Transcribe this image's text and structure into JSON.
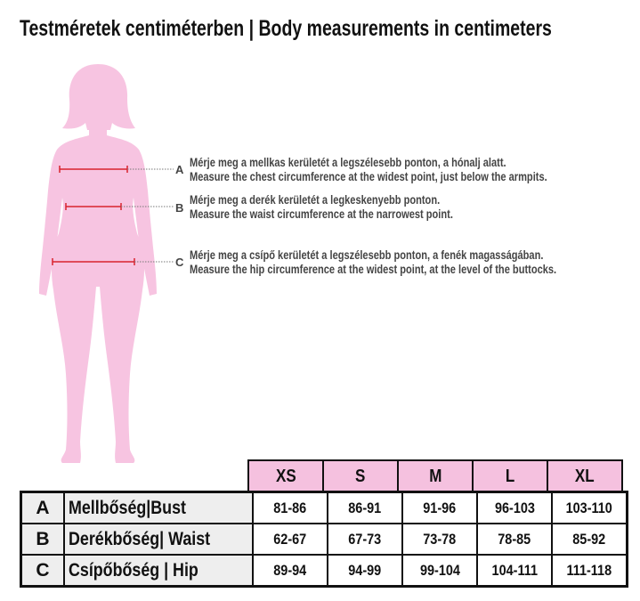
{
  "title": "Testméretek centiméterben | Body measurements in centimeters",
  "colors": {
    "figure": "#f7c4e1",
    "header_fill": "#f5c1df",
    "measure_line": "#d9232d"
  },
  "measurements": [
    {
      "letter": "A",
      "hu": "Mérje meg a mellkas kerületét a legszélesebb ponton, a hónalj alatt.",
      "en": "Measure the chest circumference at the widest point, just below the armpits."
    },
    {
      "letter": "B",
      "hu": "Mérje meg a derék kerületét a legkeskenyebb ponton.",
      "en": "Measure the waist circumference at the narrowest point."
    },
    {
      "letter": "C",
      "hu": "Mérje meg a csípő kerületét a legszélesebb ponton, a fenék magasságában.",
      "en": "Measure the hip circumference at the widest point, at the level of the buttocks."
    }
  ],
  "table": {
    "sizes": [
      "XS",
      "S",
      "M",
      "L",
      "XL"
    ],
    "rows": [
      {
        "letter": "A",
        "label": "Mellbőség|Bust",
        "values": [
          "81-86",
          "86-91",
          "91-96",
          "96-103",
          "103-110"
        ]
      },
      {
        "letter": "B",
        "label": "Derékbőség| Waist",
        "values": [
          "62-67",
          "67-73",
          "73-78",
          "78-85",
          "85-92"
        ]
      },
      {
        "letter": "C",
        "label": "Csípőbőség | Hip",
        "values": [
          "89-94",
          "94-99",
          "99-104",
          "104-111",
          "111-118"
        ]
      }
    ]
  }
}
